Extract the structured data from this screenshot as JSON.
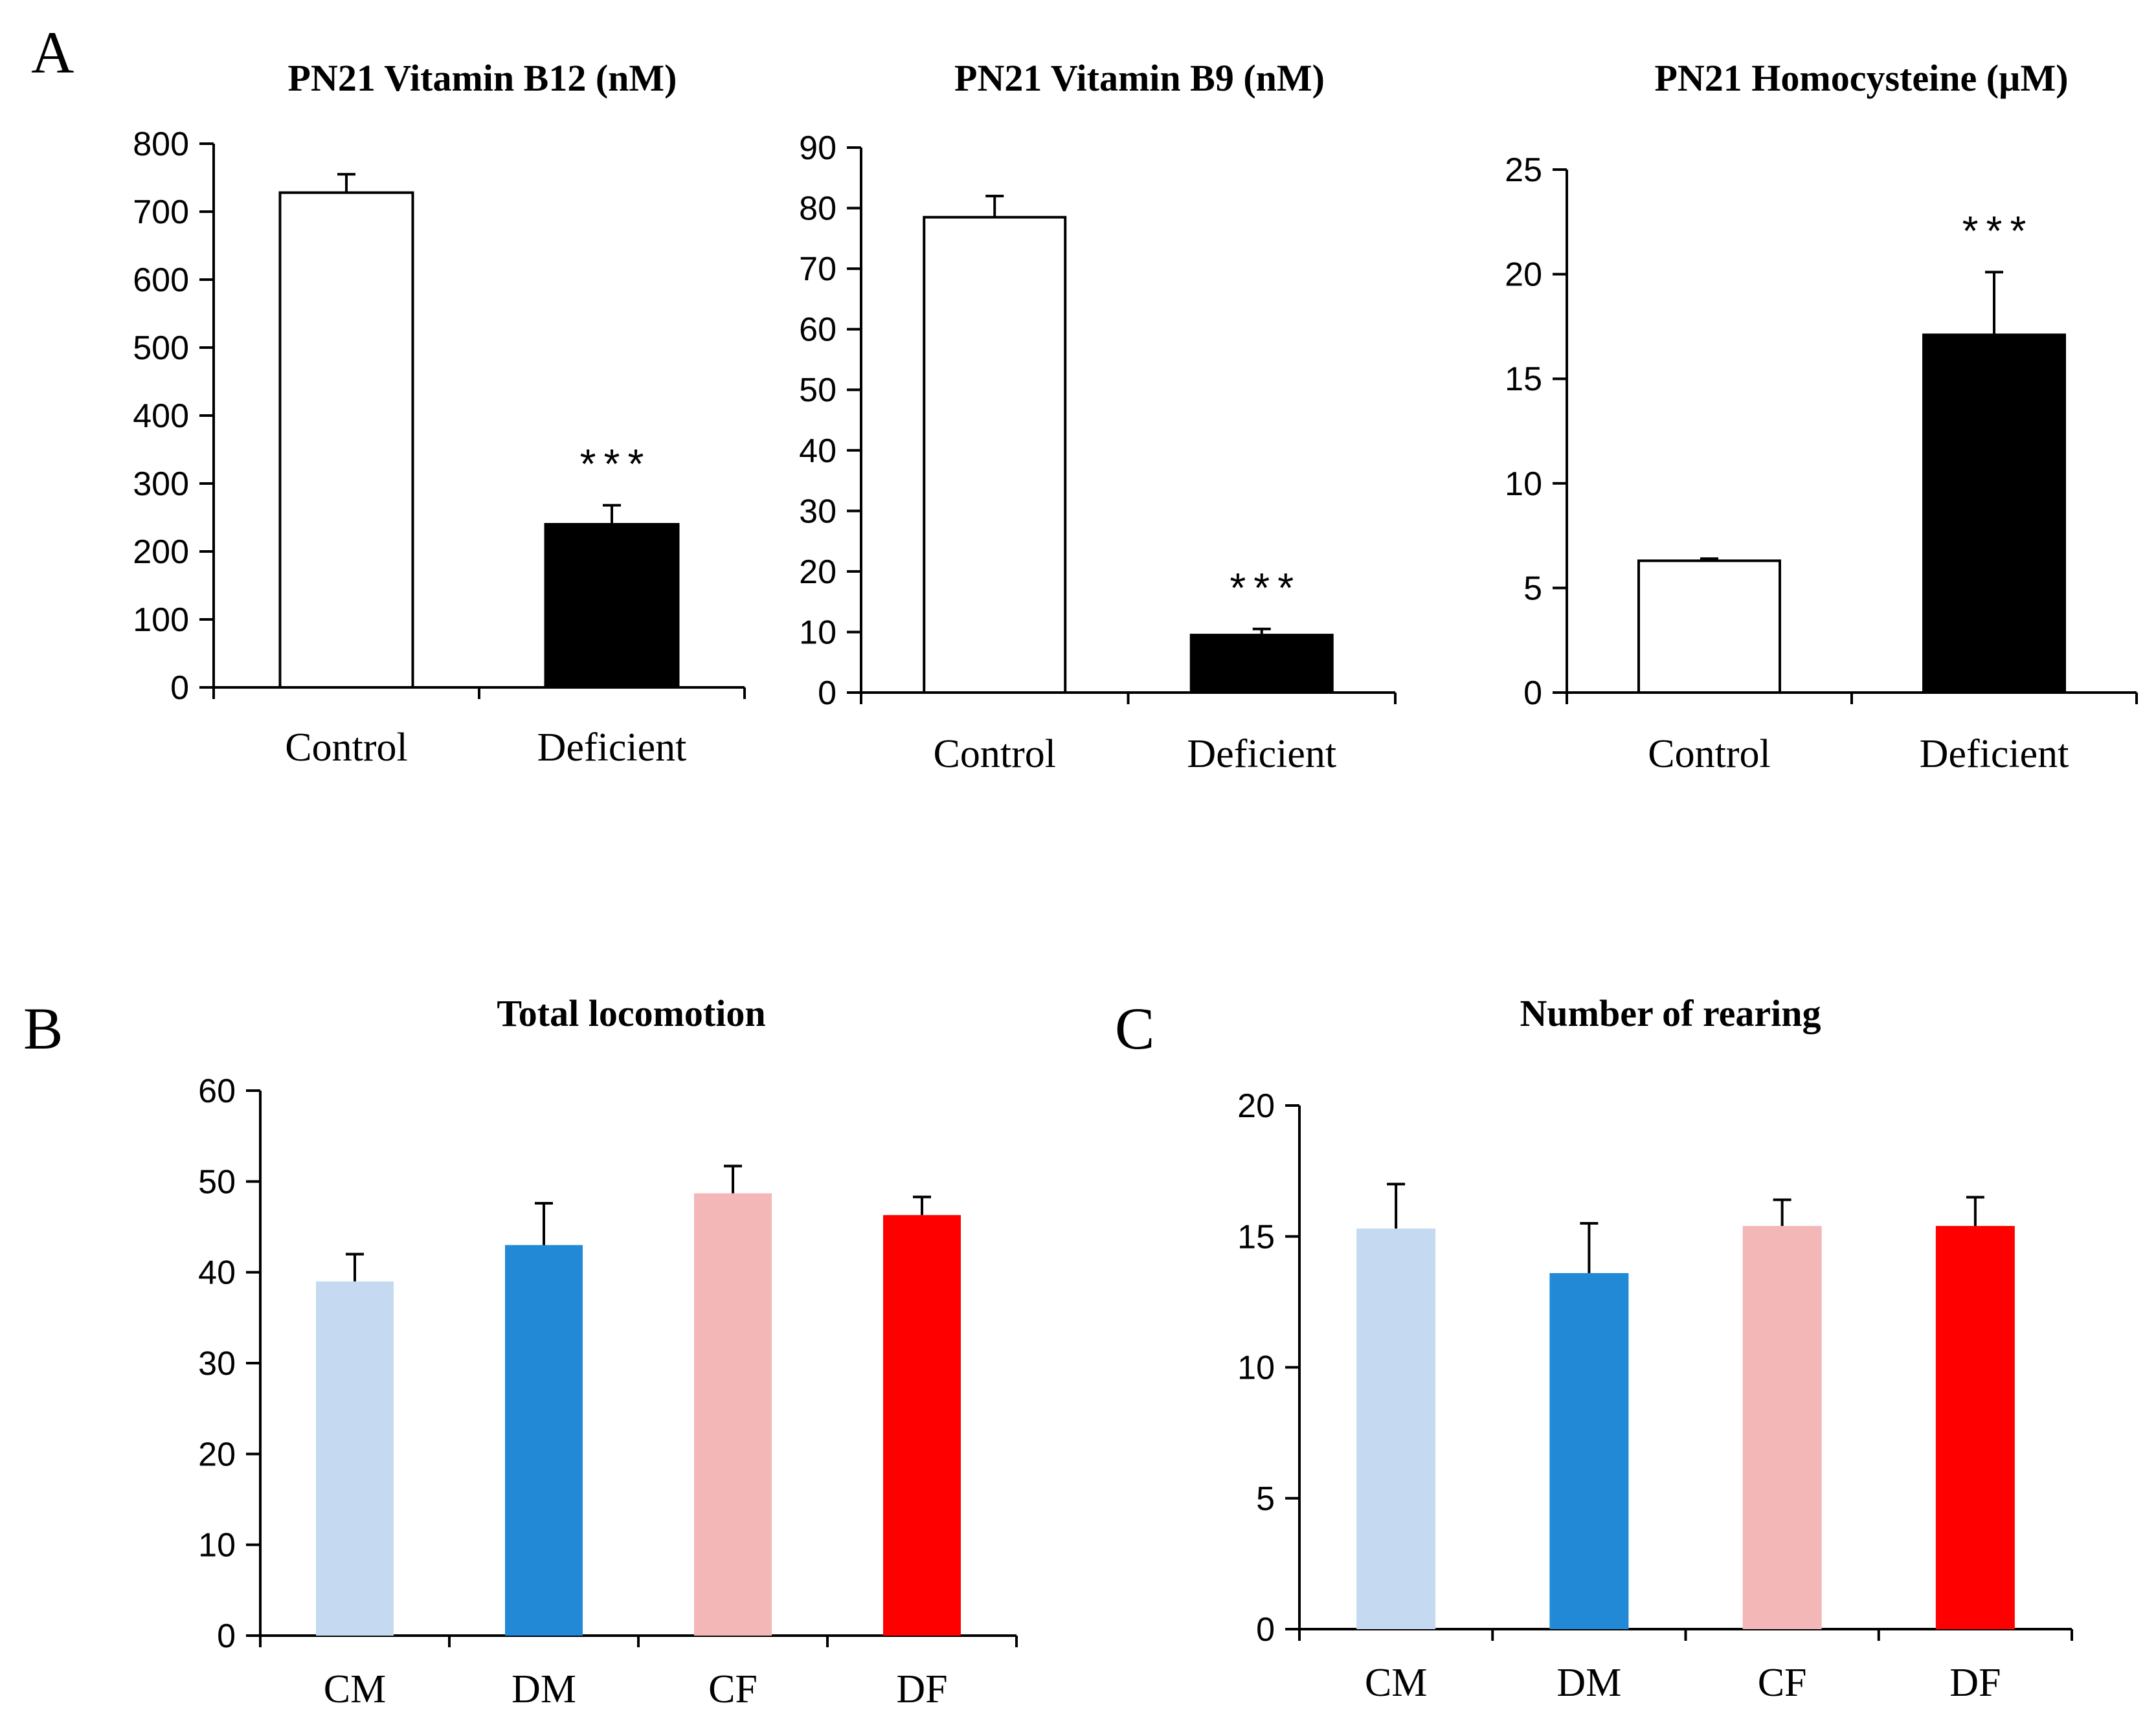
{
  "panels": [
    {
      "letter": "A"
    },
    {
      "letter": "B"
    },
    {
      "letter": "C"
    }
  ],
  "chart_data": [
    {
      "panel": "A",
      "type": "bar",
      "title": "PN21 Vitamin B12 (nM)",
      "categories": [
        "Control",
        "Deficient"
      ],
      "values": [
        728,
        240
      ],
      "errors": [
        27,
        28
      ],
      "ylim": [
        0,
        800
      ],
      "yticks": [
        0,
        100,
        200,
        300,
        400,
        500,
        600,
        700,
        800
      ],
      "bar_colors": [
        "#ffffff",
        "#000000"
      ],
      "significance": [
        "",
        "***"
      ]
    },
    {
      "panel": "A",
      "type": "bar",
      "title": "PN21 Vitamin B9 (nM)",
      "categories": [
        "Control",
        "Deficient"
      ],
      "values": [
        78.5,
        9.5
      ],
      "errors": [
        3.5,
        1.0
      ],
      "ylim": [
        0,
        90
      ],
      "yticks": [
        0,
        10,
        20,
        30,
        40,
        50,
        60,
        70,
        80,
        90
      ],
      "bar_colors": [
        "#ffffff",
        "#000000"
      ],
      "significance": [
        "",
        "***"
      ]
    },
    {
      "panel": "A",
      "type": "bar",
      "title": "PN21 Homocysteine (µM)",
      "categories": [
        "Control",
        "Deficient"
      ],
      "values": [
        6.3,
        17.1
      ],
      "errors": [
        0.1,
        3.0
      ],
      "ylim": [
        0,
        25
      ],
      "yticks": [
        0,
        5,
        10,
        15,
        20,
        25
      ],
      "bar_colors": [
        "#ffffff",
        "#000000"
      ],
      "significance": [
        "",
        "***"
      ]
    },
    {
      "panel": "B",
      "type": "bar",
      "title": "Total locomotion",
      "categories": [
        "CM",
        "DM",
        "CF",
        "DF"
      ],
      "values": [
        39,
        43,
        48.7,
        46.3
      ],
      "errors": [
        3.0,
        4.6,
        3.0,
        2.0
      ],
      "ylim": [
        0,
        60
      ],
      "yticks": [
        0,
        10,
        20,
        30,
        40,
        50,
        60
      ],
      "bar_colors": [
        "#c5daf0",
        "#2289d6",
        "#f4b7b7",
        "#ff0000"
      ],
      "significance": [
        "",
        "",
        "",
        ""
      ]
    },
    {
      "panel": "C",
      "type": "bar",
      "title": "Number of rearing",
      "categories": [
        "CM",
        "DM",
        "CF",
        "DF"
      ],
      "values": [
        15.3,
        13.6,
        15.4,
        15.4
      ],
      "errors": [
        1.7,
        1.9,
        1.0,
        1.1
      ],
      "ylim": [
        0,
        20
      ],
      "yticks": [
        0,
        5,
        10,
        15,
        20
      ],
      "bar_colors": [
        "#c5daf0",
        "#2289d6",
        "#f4b7b7",
        "#ff0000"
      ],
      "significance": [
        "",
        "",
        "",
        ""
      ]
    }
  ]
}
